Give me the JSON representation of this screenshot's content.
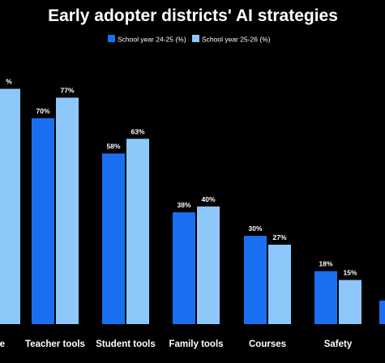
{
  "chart_data": {
    "type": "bar",
    "title": "Early adopter districts' AI strategies",
    "xlabel": "",
    "ylabel": "",
    "ylim": [
      0,
      80
    ],
    "legend_position": "top-right",
    "grid": false,
    "categories": [
      "...e",
      "Teacher tools",
      "Student tools",
      "Family tools",
      "Courses",
      "Safety",
      ""
    ],
    "series": [
      {
        "name": "School year 24-25 (%)",
        "color": "#1a6ff0",
        "values": [
          null,
          70,
          58,
          38,
          30,
          18,
          8
        ],
        "labels": [
          "",
          "70%",
          "58%",
          "38%",
          "30%",
          "18%",
          ""
        ]
      },
      {
        "name": "School year 25-26 (%)",
        "color": "#8ec8fa",
        "values": [
          80,
          77,
          63,
          40,
          27,
          15,
          null
        ],
        "labels": [
          "%",
          "77%",
          "63%",
          "40%",
          "27%",
          "15%",
          ""
        ]
      }
    ]
  },
  "colors": {
    "background": "#000000",
    "text": "#ffffff"
  }
}
